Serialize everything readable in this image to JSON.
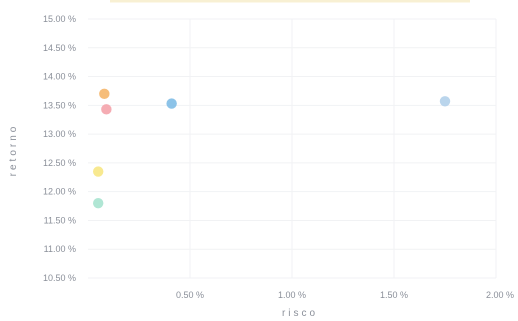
{
  "chart_data": {
    "type": "scatter",
    "title": "",
    "xlabel": "risco",
    "ylabel": "retorno",
    "xlim": [
      0,
      2.0
    ],
    "ylim": [
      10.5,
      15.0
    ],
    "grid": true,
    "x_ticks": [
      {
        "value": 0.5,
        "label": "0.50 %"
      },
      {
        "value": 1.0,
        "label": "1.00 %"
      },
      {
        "value": 1.5,
        "label": "1.50 %"
      },
      {
        "value": 2.0,
        "label": "2.00 %"
      }
    ],
    "y_ticks": [
      {
        "value": 15.0,
        "label": "15.00 %"
      },
      {
        "value": 14.5,
        "label": "14.50 %"
      },
      {
        "value": 14.0,
        "label": "14.00 %"
      },
      {
        "value": 13.5,
        "label": "13.50 %"
      },
      {
        "value": 13.0,
        "label": "13.00 %"
      },
      {
        "value": 12.5,
        "label": "12.50 %"
      },
      {
        "value": 12.0,
        "label": "12.00 %"
      },
      {
        "value": 11.5,
        "label": "11.50 %"
      },
      {
        "value": 11.0,
        "label": "11.00 %"
      },
      {
        "value": 10.5,
        "label": "10.50 %"
      }
    ],
    "points": [
      {
        "x": 0.08,
        "y": 13.7,
        "color": "#f5b66a"
      },
      {
        "x": 0.09,
        "y": 13.43,
        "color": "#f4a3ab"
      },
      {
        "x": 0.41,
        "y": 13.53,
        "color": "#7fbde6"
      },
      {
        "x": 1.75,
        "y": 13.57,
        "color": "#b2d0ea"
      },
      {
        "x": 0.05,
        "y": 12.35,
        "color": "#f7e784"
      },
      {
        "x": 0.05,
        "y": 11.8,
        "color": "#a7e3cf"
      }
    ]
  }
}
